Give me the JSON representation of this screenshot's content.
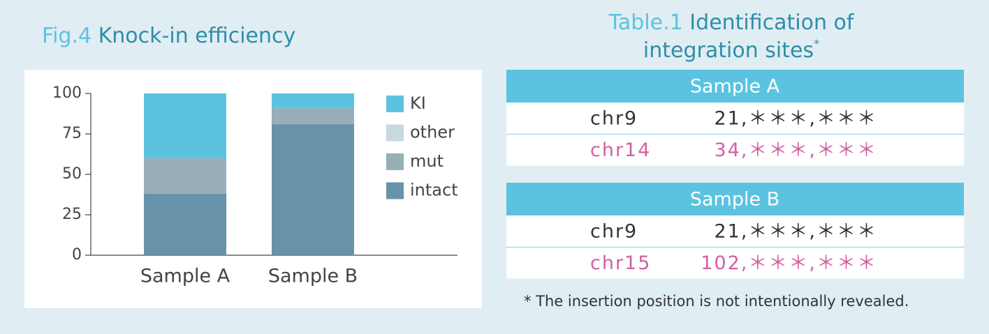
{
  "chart_data": {
    "type": "stacked_bar",
    "figure_label": "Fig.4",
    "title": "Knock-in efficiency",
    "categories": [
      "Sample A",
      "Sample B"
    ],
    "series": [
      {
        "name": "intact",
        "color": "#6892a8",
        "values": [
          38,
          81
        ]
      },
      {
        "name": "mut",
        "color": "#98aeb8",
        "values": [
          22,
          10
        ]
      },
      {
        "name": "other",
        "color": "#c9d8de",
        "values": [
          0,
          0
        ]
      },
      {
        "name": "KI",
        "color": "#5bc3e0",
        "values": [
          40,
          9
        ]
      }
    ],
    "ylim": [
      0,
      100
    ],
    "yticks": [
      0,
      25,
      50,
      75,
      100
    ],
    "grid": false,
    "legend": "right"
  },
  "table": {
    "label": "Table.1",
    "title": [
      "Identification of",
      "integration sites"
    ],
    "title_mark": "*",
    "sections": [
      {
        "header": "Sample A",
        "rows": [
          [
            "chr9",
            "21,＊＊＊,＊＊＊"
          ],
          [
            "chr14",
            "34,＊＊＊,＊＊＊"
          ]
        ]
      },
      {
        "header": "Sample B",
        "rows": [
          [
            "chr9",
            "21,＊＊＊,＊＊＊"
          ],
          [
            "chr15",
            "102,＊＊＊,＊＊＊"
          ]
        ]
      }
    ],
    "footnote": "* The insertion position is not intentionally revealed."
  }
}
